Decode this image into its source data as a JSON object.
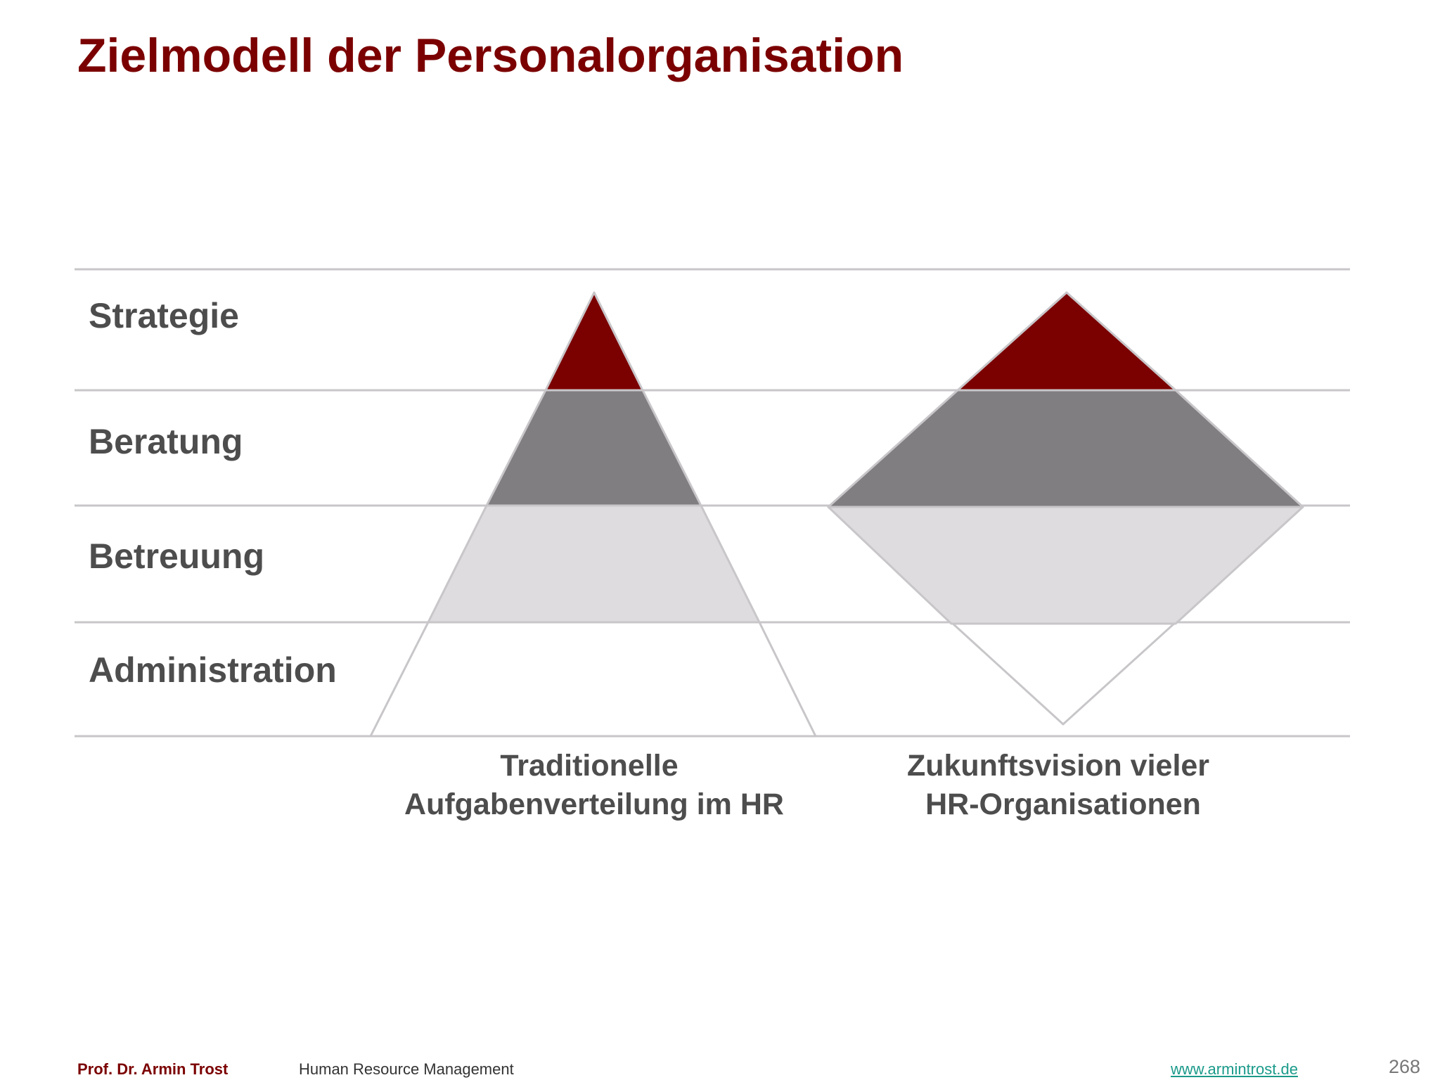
{
  "title": "Zielmodell der Personalorganisation",
  "levels": [
    {
      "label": "Strategie"
    },
    {
      "label": "Beratung"
    },
    {
      "label": "Betreuung"
    },
    {
      "label": "Administration"
    }
  ],
  "models": [
    {
      "caption_line1": "Traditionelle",
      "caption_line2": "Aufgabenverteilung im HR"
    },
    {
      "caption_line1": "Zukunftsvision vieler",
      "caption_line2": "HR-Organisationen"
    }
  ],
  "colors": {
    "title": "#7b0000",
    "strategie": "#7b0000",
    "beratung": "#807e80",
    "betreuung": "#dedcdf",
    "administration": "#ffffff",
    "outline": "#c8c6c9",
    "gridline": "#c8c6c9",
    "label": "#4d4d4d",
    "link": "#1a9a8a"
  },
  "footer": {
    "author": "Prof. Dr. Armin Trost",
    "course": "Human Resource Management",
    "website": "www.armintrost.de",
    "page": "268"
  }
}
